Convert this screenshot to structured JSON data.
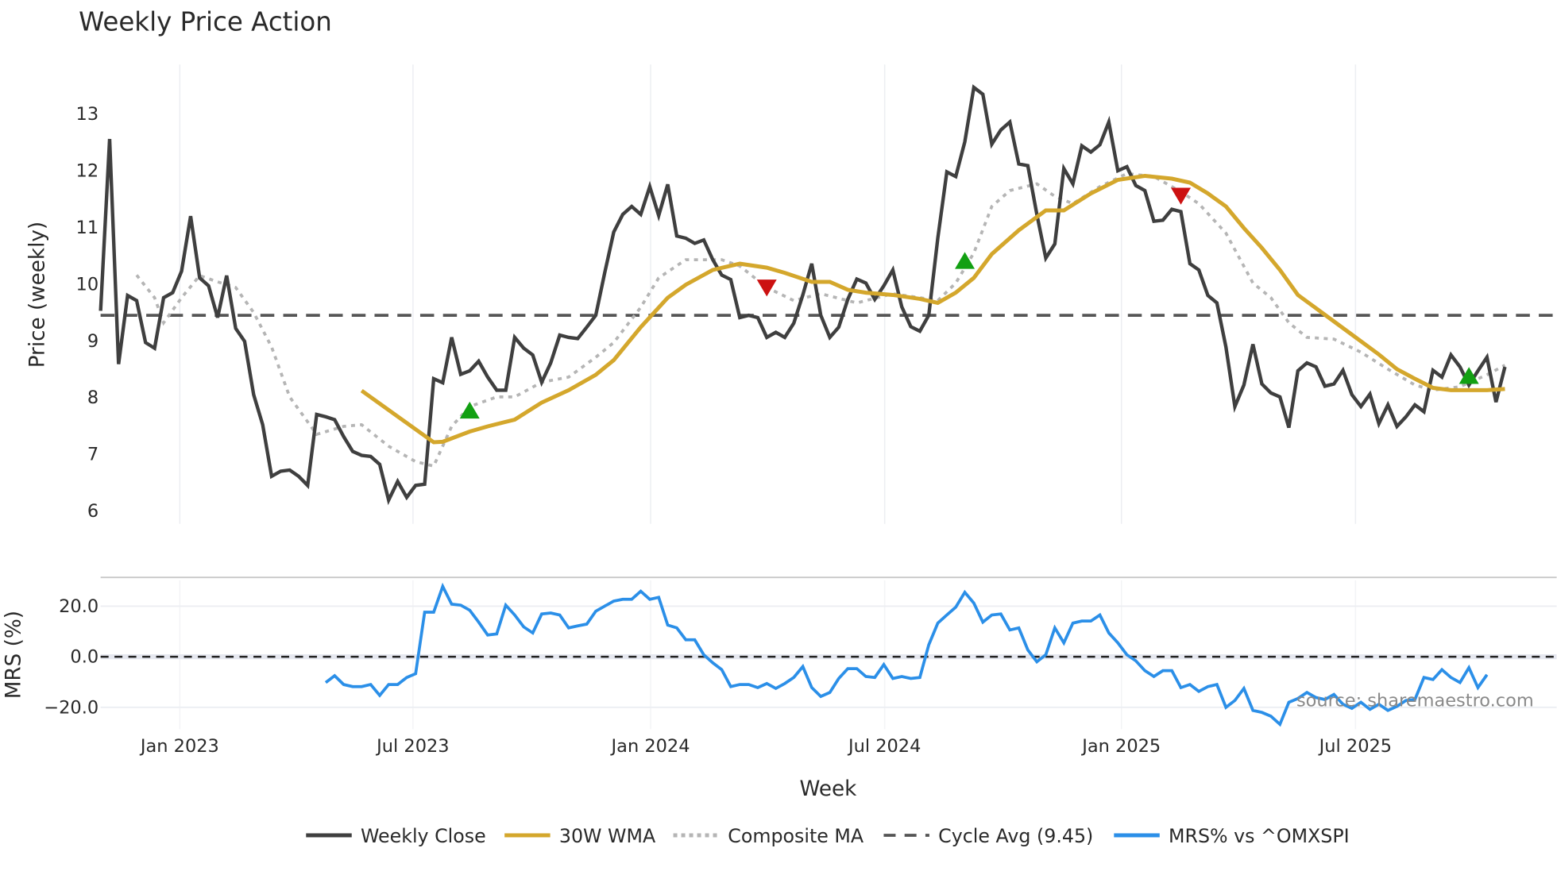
{
  "chart_data": {
    "type": "line",
    "title": "Weekly Price Action",
    "xlabel": "Week",
    "source": "source: sharemaestro.com",
    "x_unit": "week index",
    "x_ticks": [
      {
        "label": "Jan 2023",
        "week": 8.8
      },
      {
        "label": "Jul 2023",
        "week": 34.7
      },
      {
        "label": "Jan 2024",
        "week": 61.1
      },
      {
        "label": "Jul 2024",
        "week": 87.1
      },
      {
        "label": "Jan 2025",
        "week": 113.4
      },
      {
        "label": "Jul 2025",
        "week": 139.4
      }
    ],
    "price_panel": {
      "ylabel": "Price (weekly)",
      "ylim": [
        5.75,
        13.85
      ],
      "y_ticks": [
        "6",
        "7",
        "8",
        "9",
        "10",
        "11",
        "12",
        "13"
      ],
      "cycle_avg": 9.45,
      "weekly_close": [
        9.53,
        12.56,
        8.59,
        9.8,
        9.71,
        8.97,
        8.87,
        9.76,
        9.85,
        10.23,
        11.2,
        10.11,
        9.97,
        9.41,
        10.15,
        9.22,
        8.99,
        8.05,
        7.52,
        6.61,
        6.7,
        6.72,
        6.61,
        6.45,
        7.7,
        7.66,
        7.61,
        7.31,
        7.05,
        6.98,
        6.96,
        6.82,
        6.19,
        6.52,
        6.24,
        6.45,
        6.47,
        8.33,
        8.26,
        9.06,
        8.41,
        8.47,
        8.64,
        8.36,
        8.13,
        8.13,
        9.06,
        8.87,
        8.75,
        8.27,
        8.61,
        9.1,
        9.06,
        9.04,
        9.24,
        9.45,
        10.2,
        10.92,
        11.23,
        11.37,
        11.23,
        11.72,
        11.21,
        11.76,
        10.85,
        10.81,
        10.72,
        10.78,
        10.43,
        10.16,
        10.08,
        9.41,
        9.45,
        9.41,
        9.06,
        9.15,
        9.06,
        9.31,
        9.81,
        10.36,
        9.45,
        9.06,
        9.24,
        9.73,
        10.09,
        10.02,
        9.73,
        9.97,
        10.25,
        9.6,
        9.25,
        9.17,
        9.45,
        10.81,
        11.98,
        11.9,
        12.51,
        13.47,
        13.35,
        12.47,
        12.72,
        12.86,
        12.12,
        12.09,
        11.23,
        10.46,
        10.71,
        12.04,
        11.77,
        12.44,
        12.33,
        12.46,
        12.86,
        12.0,
        12.07,
        11.74,
        11.65,
        11.11,
        11.13,
        11.32,
        11.28,
        10.36,
        10.25,
        9.8,
        9.67,
        8.89,
        7.84,
        8.22,
        8.94,
        8.24,
        8.08,
        8.01,
        7.47,
        8.47,
        8.61,
        8.54,
        8.2,
        8.24,
        8.48,
        8.05,
        7.84,
        8.06,
        7.54,
        7.87,
        7.49,
        7.66,
        7.87,
        7.75,
        8.48,
        8.36,
        8.75,
        8.54,
        8.22,
        8.47,
        8.71,
        7.92,
        8.54
      ],
      "wma_30w": [
        [
          29,
          8.12
        ],
        [
          37,
          7.21
        ],
        [
          38,
          7.22
        ],
        [
          41,
          7.4
        ],
        [
          43,
          7.49
        ],
        [
          46,
          7.61
        ],
        [
          49,
          7.91
        ],
        [
          52,
          8.13
        ],
        [
          55,
          8.4
        ],
        [
          57,
          8.66
        ],
        [
          60,
          9.24
        ],
        [
          63,
          9.76
        ],
        [
          65,
          9.99
        ],
        [
          68,
          10.25
        ],
        [
          71,
          10.36
        ],
        [
          74,
          10.29
        ],
        [
          76,
          10.2
        ],
        [
          79,
          10.04
        ],
        [
          81,
          10.04
        ],
        [
          83,
          9.9
        ],
        [
          85,
          9.85
        ],
        [
          88,
          9.81
        ],
        [
          91,
          9.74
        ],
        [
          93,
          9.67
        ],
        [
          95,
          9.85
        ],
        [
          97,
          10.11
        ],
        [
          99,
          10.53
        ],
        [
          102,
          10.95
        ],
        [
          105,
          11.3
        ],
        [
          107,
          11.3
        ],
        [
          110,
          11.6
        ],
        [
          113,
          11.84
        ],
        [
          116,
          11.91
        ],
        [
          119,
          11.86
        ],
        [
          121,
          11.79
        ],
        [
          123,
          11.6
        ],
        [
          125,
          11.37
        ],
        [
          127,
          10.99
        ],
        [
          129,
          10.64
        ],
        [
          131,
          10.25
        ],
        [
          133,
          9.81
        ],
        [
          136,
          9.46
        ],
        [
          139,
          9.11
        ],
        [
          142,
          8.76
        ],
        [
          144,
          8.5
        ],
        [
          146,
          8.33
        ],
        [
          148,
          8.17
        ],
        [
          150,
          8.13
        ],
        [
          152,
          8.13
        ],
        [
          154,
          8.13
        ],
        [
          156,
          8.15
        ]
      ],
      "composite_ma": [
        [
          4,
          10.16
        ],
        [
          6,
          9.76
        ],
        [
          7,
          9.32
        ],
        [
          9,
          9.76
        ],
        [
          11,
          10.15
        ],
        [
          13,
          10.04
        ],
        [
          15,
          9.94
        ],
        [
          17,
          9.5
        ],
        [
          19,
          8.89
        ],
        [
          21,
          8.01
        ],
        [
          24,
          7.35
        ],
        [
          27,
          7.49
        ],
        [
          29,
          7.52
        ],
        [
          32,
          7.14
        ],
        [
          35,
          6.87
        ],
        [
          37,
          6.79
        ],
        [
          39,
          7.49
        ],
        [
          41,
          7.84
        ],
        [
          44,
          8.01
        ],
        [
          46,
          8.01
        ],
        [
          49,
          8.27
        ],
        [
          52,
          8.36
        ],
        [
          55,
          8.71
        ],
        [
          57,
          8.97
        ],
        [
          60,
          9.59
        ],
        [
          62,
          10.11
        ],
        [
          65,
          10.43
        ],
        [
          69,
          10.43
        ],
        [
          71,
          10.32
        ],
        [
          74,
          9.94
        ],
        [
          77,
          9.71
        ],
        [
          80,
          9.83
        ],
        [
          84,
          9.67
        ],
        [
          88,
          9.83
        ],
        [
          91,
          9.76
        ],
        [
          93,
          9.71
        ],
        [
          95,
          10.02
        ],
        [
          97,
          10.55
        ],
        [
          99,
          11.37
        ],
        [
          101,
          11.65
        ],
        [
          104,
          11.77
        ],
        [
          106,
          11.55
        ],
        [
          108,
          11.42
        ],
        [
          111,
          11.72
        ],
        [
          114,
          11.95
        ],
        [
          117,
          11.9
        ],
        [
          120,
          11.63
        ],
        [
          122,
          11.42
        ],
        [
          125,
          10.9
        ],
        [
          128,
          10.02
        ],
        [
          130,
          9.76
        ],
        [
          132,
          9.32
        ],
        [
          134,
          9.06
        ],
        [
          137,
          9.03
        ],
        [
          140,
          8.8
        ],
        [
          143,
          8.5
        ],
        [
          146,
          8.22
        ],
        [
          148,
          8.13
        ],
        [
          151,
          8.19
        ],
        [
          154,
          8.4
        ],
        [
          156,
          8.57
        ]
      ],
      "buy_signals": [
        [
          41,
          7.77
        ],
        [
          96,
          10.41
        ],
        [
          152,
          8.38
        ]
      ],
      "sell_signals": [
        [
          74,
          9.94
        ],
        [
          120,
          11.56
        ]
      ]
    },
    "mrs_panel": {
      "ylabel": "MRS (%)",
      "ylim": [
        -29,
        32
      ],
      "y_ticks": [
        {
          "label": "20.0",
          "value": 20
        },
        {
          "label": "0.0",
          "value": 0
        },
        {
          "label": "−20.0",
          "value": -20
        }
      ],
      "start_week": 25,
      "values": [
        -10.2,
        -7.5,
        -11.0,
        -11.8,
        -11.8,
        -11.0,
        -15.3,
        -11.0,
        -11.0,
        -8.2,
        -6.7,
        17.6,
        17.6,
        27.8,
        20.8,
        20.4,
        18.4,
        13.7,
        8.6,
        9.0,
        20.4,
        16.5,
        11.8,
        9.4,
        16.9,
        17.3,
        16.5,
        11.4,
        12.2,
        12.9,
        18.0,
        20.0,
        22.0,
        22.7,
        22.7,
        25.9,
        22.7,
        23.5,
        12.5,
        11.4,
        6.7,
        6.7,
        0.8,
        -2.4,
        -5.1,
        -11.8,
        -11.0,
        -11.0,
        -12.2,
        -10.6,
        -12.5,
        -10.6,
        -8.2,
        -3.9,
        -12.2,
        -15.7,
        -14.1,
        -8.6,
        -4.7,
        -4.7,
        -7.8,
        -8.2,
        -3.1,
        -8.6,
        -7.8,
        -8.6,
        -8.2,
        4.7,
        13.3,
        16.5,
        19.6,
        25.5,
        21.2,
        13.7,
        16.5,
        16.9,
        10.6,
        11.4,
        2.7,
        -2.0,
        0.8,
        11.4,
        5.5,
        13.3,
        14.1,
        14.1,
        16.5,
        9.4,
        5.5,
        0.8,
        -1.6,
        -5.5,
        -7.8,
        -5.5,
        -5.5,
        -12.2,
        -11.0,
        -13.7,
        -11.8,
        -11.0,
        -20.0,
        -17.3,
        -12.5,
        -21.2,
        -22.0,
        -23.5,
        -26.7,
        -18.0,
        -16.5,
        -14.1,
        -16.1,
        -16.9,
        -14.9,
        -18.8,
        -20.4,
        -18.0,
        -20.8,
        -18.8,
        -21.2,
        -19.6,
        -17.3,
        -16.9,
        -8.2,
        -9.0,
        -5.1,
        -8.2,
        -10.2,
        -4.3,
        -12.2,
        -7.1
      ]
    },
    "legend": [
      {
        "label": "Weekly Close",
        "style": "solid",
        "color": "#3f3f3f"
      },
      {
        "label": "30W WMA",
        "style": "solid",
        "color": "#d4a72c"
      },
      {
        "label": "Composite MA",
        "style": "dotted",
        "color": "#b5b5b5"
      },
      {
        "label": "Cycle Avg (9.45)",
        "style": "dashed",
        "color": "#555555"
      },
      {
        "label": "MRS% vs ^OMXSPI",
        "style": "solid",
        "color": "#2b8fe8"
      }
    ],
    "colors": {
      "buy": "#12a012",
      "sell": "#cc1111",
      "grid": "#eceef2"
    }
  }
}
